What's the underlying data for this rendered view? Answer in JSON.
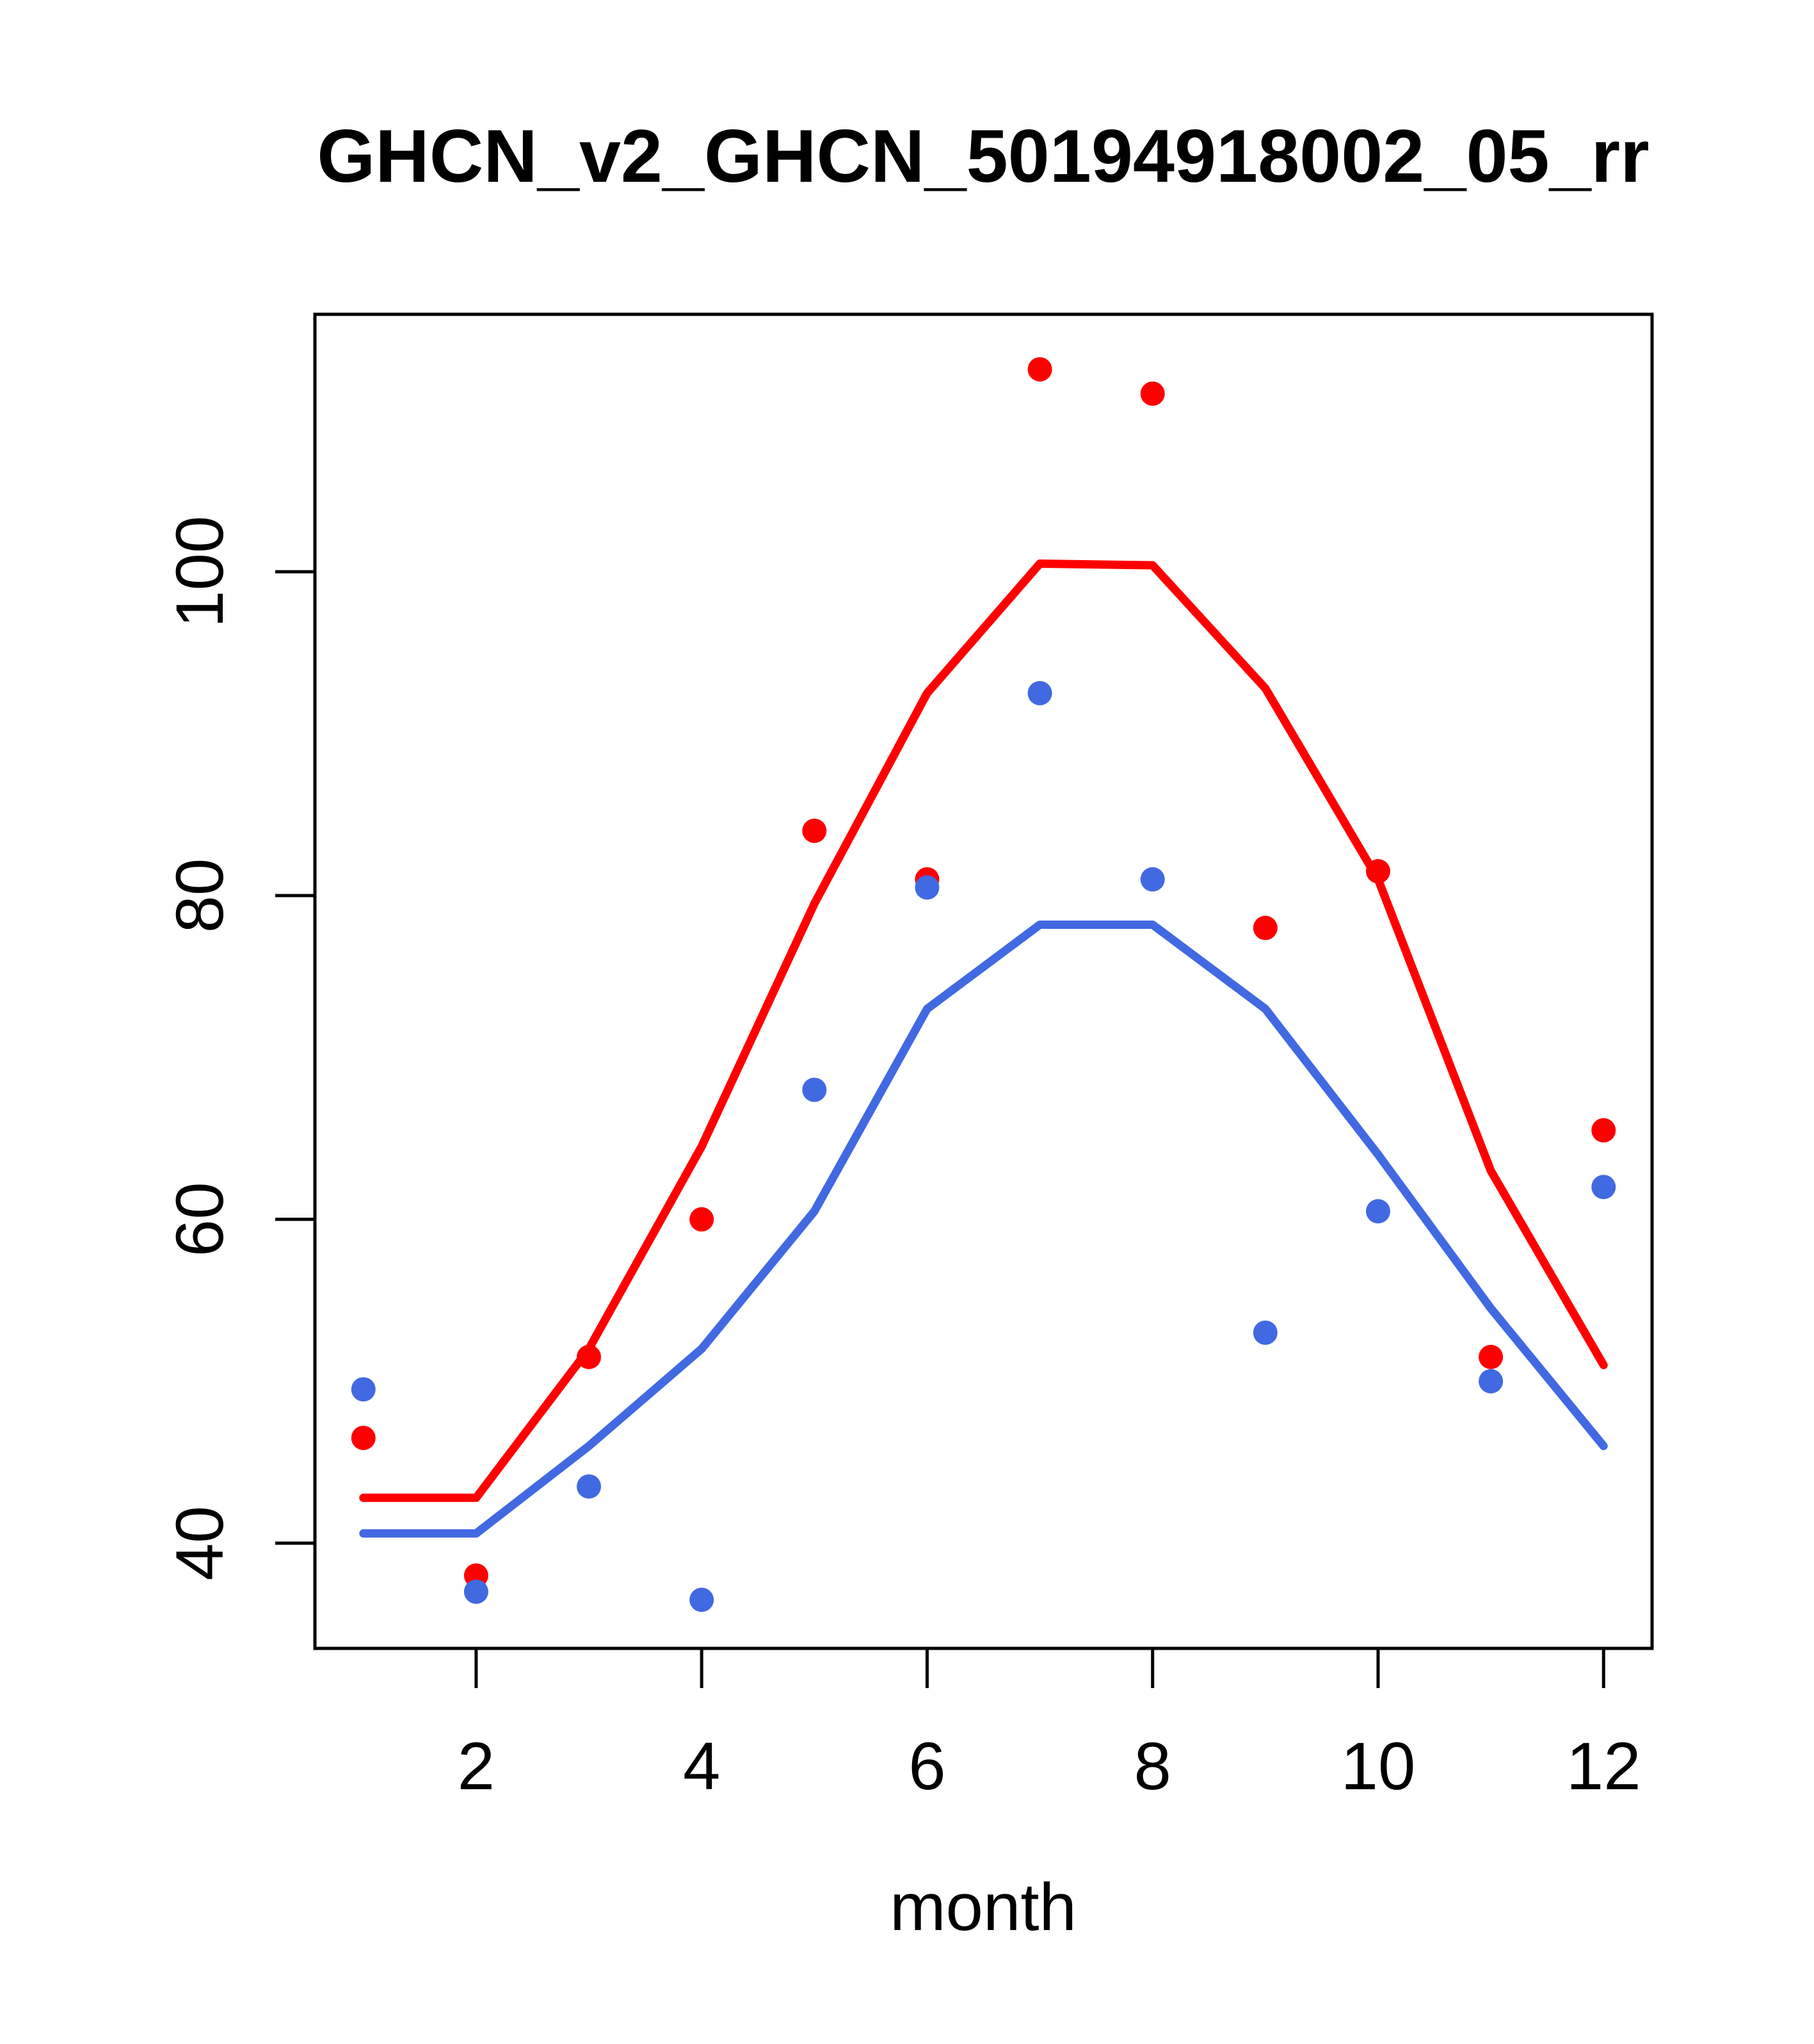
{
  "chart_data": {
    "type": "scatter",
    "title": "GHCN_v2_GHCN_50194918002_05_rr",
    "xlabel": "month",
    "ylabel": "",
    "x": [
      1,
      2,
      3,
      4,
      5,
      6,
      7,
      8,
      9,
      10,
      11,
      12
    ],
    "x_ticks": [
      2,
      4,
      6,
      8,
      10,
      12
    ],
    "y_ticks": [
      40,
      60,
      80,
      100
    ],
    "xlim": [
      0.57,
      12.43
    ],
    "ylim": [
      33.5,
      115.9
    ],
    "grid": false,
    "legend": null,
    "colors": {
      "red_series": "#ff0000",
      "blue_series": "#4169e1",
      "axis": "#000000",
      "background": "#ffffff"
    },
    "series": [
      {
        "name": "red-lowess-line",
        "type": "line",
        "color_key": "red_series",
        "values": [
          42.8,
          42.8,
          52.0,
          64.5,
          79.5,
          92.5,
          100.5,
          100.4,
          92.8,
          81.0,
          63.0,
          51.0
        ]
      },
      {
        "name": "blue-lowess-line",
        "type": "line",
        "color_key": "blue_series",
        "values": [
          40.6,
          40.6,
          46.0,
          52.0,
          60.5,
          73.0,
          78.2,
          78.2,
          73.0,
          64.0,
          54.5,
          46.0
        ]
      },
      {
        "name": "red-points",
        "type": "scatter",
        "color_key": "red_series",
        "values": [
          46.5,
          38.0,
          51.5,
          60.0,
          84.0,
          81.0,
          112.5,
          111.0,
          78.0,
          81.5,
          51.5,
          65.5
        ]
      },
      {
        "name": "blue-points",
        "type": "scatter",
        "color_key": "blue_series",
        "values": [
          49.5,
          37.0,
          43.5,
          36.5,
          68.0,
          80.5,
          92.5,
          81.0,
          53.0,
          60.5,
          50.0,
          62.0
        ]
      }
    ]
  }
}
